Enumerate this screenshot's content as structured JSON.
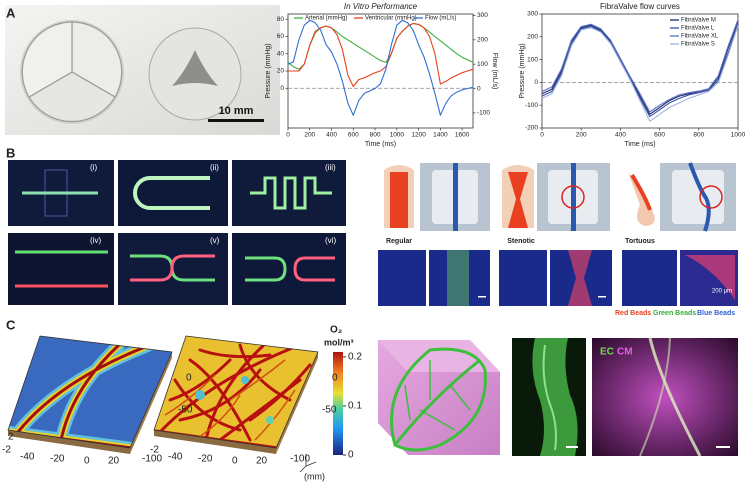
{
  "panel_labels": [
    "A",
    "B",
    "C"
  ],
  "panel_a": {
    "scale_bar": "10 mm"
  },
  "chart_data": [
    {
      "type": "line",
      "title": "In Vitro Performance",
      "x_label": "Time (ms)",
      "y_label": "Pressure (mmHg)",
      "y2_label": "Flow (mL/s)",
      "legend": "top",
      "x": [
        0,
        50,
        100,
        150,
        200,
        250,
        300,
        350,
        400,
        450,
        500,
        550,
        600,
        650,
        700,
        750,
        800,
        850,
        900,
        950,
        1000,
        1050,
        1100,
        1150,
        1200,
        1250,
        1300,
        1350,
        1400,
        1450,
        1500,
        1550,
        1600,
        1650,
        1700
      ],
      "xlim": [
        0,
        1700
      ],
      "xticks": [
        0,
        200,
        400,
        600,
        800,
        1000,
        1200,
        1400,
        1600
      ],
      "ylim": [
        -46,
        86
      ],
      "yticks": [
        0,
        20,
        40,
        60,
        80
      ],
      "y2lim": [
        -162,
        306
      ],
      "y2ticks": [
        -100,
        0,
        100,
        200,
        300
      ],
      "hline": 0,
      "series": [
        {
          "name": "Arterial (mmHg)",
          "color": "#3cb043",
          "values": [
            30,
            25,
            22,
            28,
            50,
            64,
            70,
            72,
            70,
            65,
            60,
            56,
            52,
            48,
            44,
            40,
            36,
            32,
            30,
            40,
            58,
            66,
            72,
            75,
            74,
            70,
            65,
            60,
            55,
            50,
            45,
            40,
            36,
            33,
            30
          ]
        },
        {
          "name": "Ventricular (mmHg)",
          "color": "#e8401c",
          "values": [
            20,
            20,
            20,
            28,
            50,
            66,
            70,
            72,
            70,
            62,
            45,
            15,
            2,
            10,
            12,
            15,
            18,
            20,
            25,
            40,
            58,
            66,
            72,
            75,
            74,
            70,
            60,
            40,
            5,
            8,
            12,
            15,
            18,
            20,
            22
          ]
        },
        {
          "name": "Flow (mL/s)",
          "color": "#2f6fd6",
          "axis": "y2",
          "values": [
            100,
            110,
            200,
            260,
            280,
            270,
            240,
            180,
            150,
            100,
            30,
            -60,
            -110,
            -50,
            -20,
            -10,
            0,
            20,
            80,
            180,
            260,
            280,
            270,
            240,
            180,
            130,
            60,
            -20,
            -110,
            -60,
            -30,
            -15,
            -5,
            0,
            5
          ]
        }
      ]
    },
    {
      "type": "line",
      "title": "FibraValve flow curves",
      "x_label": "Time (ms)",
      "y_label": "Pressure (mmHg)",
      "legend": "upper right",
      "x": [
        0,
        50,
        100,
        150,
        200,
        250,
        300,
        350,
        400,
        450,
        500,
        550,
        600,
        650,
        700,
        750,
        800,
        850,
        900,
        950,
        1000
      ],
      "xlim": [
        0,
        1000
      ],
      "xticks": [
        0,
        200,
        400,
        600,
        800,
        1000
      ],
      "ylim": [
        -200,
        300
      ],
      "yticks": [
        -200,
        -100,
        0,
        100,
        200,
        300
      ],
      "hline": 0,
      "series": [
        {
          "name": "FibraValve M",
          "color": "#1a2a6c",
          "values": [
            -50,
            -30,
            50,
            180,
            240,
            250,
            230,
            180,
            100,
            20,
            -60,
            -140,
            -110,
            -80,
            -60,
            -50,
            -40,
            -30,
            20,
            150,
            270
          ]
        },
        {
          "name": "FibraValve L",
          "color": "#3b4fa0",
          "values": [
            -60,
            -40,
            40,
            170,
            235,
            245,
            225,
            175,
            95,
            15,
            -70,
            -150,
            -120,
            -90,
            -70,
            -55,
            -45,
            -35,
            10,
            130,
            260
          ]
        },
        {
          "name": "FibraValve XL",
          "color": "#5a6fc0",
          "values": [
            -40,
            -20,
            60,
            185,
            245,
            255,
            235,
            185,
            105,
            25,
            -50,
            -130,
            -100,
            -75,
            -55,
            -45,
            -38,
            -28,
            30,
            160,
            275
          ]
        },
        {
          "name": "FibraValve S",
          "color": "#9fb4e0",
          "values": [
            -70,
            -50,
            30,
            160,
            230,
            240,
            220,
            170,
            90,
            10,
            -80,
            -170,
            -140,
            -110,
            -90,
            -70,
            -55,
            -40,
            0,
            120,
            250
          ]
        }
      ]
    }
  ],
  "panel_b": {
    "channels": [
      "(i)",
      "(ii)",
      "(iii)",
      "(iv)",
      "(v)",
      "(vi)"
    ],
    "models": [
      "Regular",
      "Stenotic",
      "Tortuous"
    ],
    "scale_bar": "200 μm",
    "beads": [
      {
        "name": "Red Beads",
        "color": "#e8401c"
      },
      {
        "name": "Green Beads",
        "color": "#2fae3a"
      },
      {
        "name": "Blue Beads",
        "color": "#2f5fd6"
      }
    ]
  },
  "panel_c": {
    "plot_axes": {
      "side_ticks": [
        0,
        -50,
        -100
      ],
      "depth_ticks": [
        2,
        -2
      ],
      "front_ticks": [
        -40,
        -20,
        0,
        20
      ]
    },
    "colorbar": {
      "title": "O₂",
      "unit": "mol/m³",
      "lim": [
        0,
        0.21
      ],
      "ticks": [
        0,
        0.1,
        0.2
      ]
    },
    "unit": "(mm)",
    "stain_labels": [
      {
        "name": "EC",
        "color": "#6fdc4a"
      },
      {
        "name": "CM",
        "color": "#e060e0"
      }
    ]
  }
}
